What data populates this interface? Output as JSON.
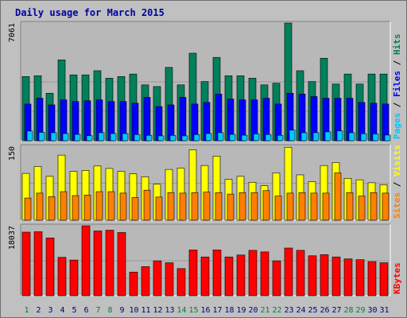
{
  "chart_data": {
    "type": "bar",
    "title": "Daily usage for March 2015",
    "categories": [
      "1",
      "2",
      "3",
      "4",
      "5",
      "6",
      "7",
      "8",
      "9",
      "10",
      "11",
      "12",
      "13",
      "14",
      "15",
      "16",
      "17",
      "18",
      "19",
      "20",
      "21",
      "22",
      "23",
      "24",
      "25",
      "26",
      "27",
      "28",
      "29",
      "30",
      "31"
    ],
    "weekend_days": [
      "1",
      "7",
      "8",
      "14",
      "15",
      "21",
      "22",
      "28",
      "29"
    ],
    "colors": {
      "hits": "#00805c",
      "files": "#0000ff",
      "pages": "#00c8ff",
      "visits": "#ffff00",
      "sites": "#ff8000",
      "kbytes": "#ff0000",
      "title": "#0000a0",
      "weekday_label": "#000080",
      "weekend_label": "#008040",
      "panel_bg": "#b8b8b8",
      "frame_bg": "#c0c0c0"
    },
    "panels": [
      {
        "id": "hits-files-pages",
        "ymax_label": "7061",
        "ymax": 7061,
        "legend": [
          {
            "name": "Pages",
            "color": "#00c8ff"
          },
          {
            "name": "Files",
            "color": "#0000ff"
          },
          {
            "name": "Hits",
            "color": "#00805c"
          }
        ],
        "series": [
          {
            "name": "Hits",
            "color": "#00805c",
            "values": [
              3850,
              3900,
              2850,
              4850,
              3950,
              3950,
              4200,
              3750,
              3850,
              4000,
              3350,
              3250,
              4400,
              3350,
              5250,
              3550,
              5000,
              3900,
              3900,
              3750,
              3350,
              3450,
              7061,
              4200,
              3550,
              4950,
              3400,
              4000,
              3400,
              4000,
              4000
            ]
          },
          {
            "name": "Files",
            "color": "#0000ff",
            "values": [
              2200,
              2550,
              2150,
              2450,
              2350,
              2400,
              2450,
              2350,
              2350,
              2250,
              2600,
              2050,
              2150,
              2600,
              2200,
              2300,
              2800,
              2500,
              2450,
              2450,
              2550,
              2200,
              2850,
              2800,
              2650,
              2550,
              2550,
              2550,
              2300,
              2250,
              2200
            ]
          },
          {
            "name": "Pages",
            "color": "#00c8ff",
            "values": [
              580,
              500,
              480,
              430,
              380,
              300,
              480,
              430,
              430,
              370,
              320,
              290,
              320,
              290,
              370,
              430,
              480,
              380,
              330,
              410,
              370,
              320,
              640,
              480,
              480,
              530,
              590,
              480,
              420,
              410,
              340
            ]
          }
        ]
      },
      {
        "id": "visits-sites",
        "ymax_label": "150",
        "ymax": 150,
        "legend": [
          {
            "name": "Sites",
            "color": "#ff8000"
          },
          {
            "name": "Visits",
            "color": "#ffff00"
          }
        ],
        "series": [
          {
            "name": "Visits",
            "color": "#ffff00",
            "values": [
              95,
              109,
              89,
              132,
              99,
              101,
              110,
              105,
              99,
              94,
              88,
              73,
              103,
              106,
              143,
              111,
              130,
              83,
              89,
              77,
              70,
              96,
              148,
              92,
              78,
              111,
              117,
              85,
              82,
              76,
              72
            ]
          },
          {
            "name": "Sites",
            "color": "#ff8000",
            "values": [
              45,
              55,
              48,
              58,
              50,
              51,
              58,
              58,
              55,
              46,
              61,
              47,
              56,
              55,
              56,
              57,
              56,
              53,
              56,
              56,
              60,
              49,
              55,
              56,
              55,
              55,
              96,
              56,
              49,
              56,
              55
            ]
          }
        ]
      },
      {
        "id": "kbytes",
        "ymax_label": "18037",
        "ymax": 18037,
        "legend": [
          {
            "name": "KBytes",
            "color": "#ff0000"
          }
        ],
        "series": [
          {
            "name": "KBytes",
            "color": "#ff0000",
            "values": [
              16400,
              16500,
              14900,
              9900,
              9200,
              18037,
              16700,
              16900,
              16300,
              6100,
              7500,
              9000,
              8500,
              7000,
              11800,
              10000,
              11800,
              10000,
              10500,
              11700,
              11300,
              9000,
              12300,
              11700,
              10300,
              10600,
              10000,
              9500,
              9300,
              8800,
              8500
            ]
          }
        ]
      }
    ]
  }
}
